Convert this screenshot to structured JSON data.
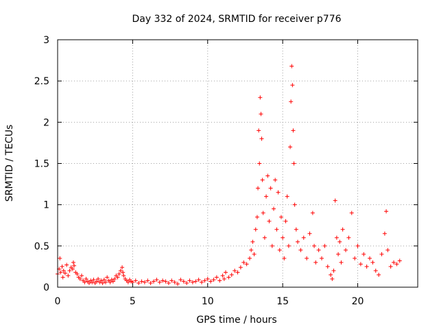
{
  "chart_data": {
    "type": "scatter",
    "title": "Day 332 of 2024, SRMTID for receiver p776",
    "xlabel": "GPS time / hours",
    "ylabel": "SRMTID / TECUs",
    "xlim": [
      0,
      24
    ],
    "ylim": [
      0,
      3
    ],
    "xticks": [
      0,
      5,
      10,
      15,
      20
    ],
    "yticks": [
      0,
      0.5,
      1,
      1.5,
      2,
      2.5,
      3
    ],
    "xtick_labels": [
      "0",
      "5",
      "10",
      "15",
      "20"
    ],
    "ytick_labels": [
      "0",
      "0.5",
      "1",
      "1.5",
      "2",
      "2.5",
      "3"
    ],
    "grid": true,
    "marker": "+",
    "color": "#ff0000",
    "series": [
      {
        "name": "SRMTID",
        "points": [
          [
            0.0,
            0.16
          ],
          [
            0.1,
            0.22
          ],
          [
            0.15,
            0.35
          ],
          [
            0.2,
            0.18
          ],
          [
            0.3,
            0.25
          ],
          [
            0.35,
            0.12
          ],
          [
            0.4,
            0.2
          ],
          [
            0.5,
            0.17
          ],
          [
            0.6,
            0.27
          ],
          [
            0.7,
            0.14
          ],
          [
            0.8,
            0.2
          ],
          [
            0.9,
            0.24
          ],
          [
            1.0,
            0.22
          ],
          [
            1.05,
            0.3
          ],
          [
            1.1,
            0.26
          ],
          [
            1.2,
            0.18
          ],
          [
            1.3,
            0.16
          ],
          [
            1.4,
            0.12
          ],
          [
            1.5,
            0.1
          ],
          [
            1.6,
            0.14
          ],
          [
            1.7,
            0.08
          ],
          [
            1.8,
            0.06
          ],
          [
            1.9,
            0.1
          ],
          [
            2.0,
            0.07
          ],
          [
            2.1,
            0.05
          ],
          [
            2.2,
            0.08
          ],
          [
            2.3,
            0.06
          ],
          [
            2.4,
            0.09
          ],
          [
            2.5,
            0.05
          ],
          [
            2.6,
            0.07
          ],
          [
            2.7,
            0.1
          ],
          [
            2.8,
            0.06
          ],
          [
            2.9,
            0.08
          ],
          [
            3.0,
            0.05
          ],
          [
            3.1,
            0.09
          ],
          [
            3.2,
            0.06
          ],
          [
            3.3,
            0.12
          ],
          [
            3.4,
            0.08
          ],
          [
            3.5,
            0.06
          ],
          [
            3.6,
            0.09
          ],
          [
            3.7,
            0.07
          ],
          [
            3.8,
            0.1
          ],
          [
            3.9,
            0.14
          ],
          [
            4.0,
            0.12
          ],
          [
            4.1,
            0.16
          ],
          [
            4.2,
            0.2
          ],
          [
            4.3,
            0.24
          ],
          [
            4.35,
            0.18
          ],
          [
            4.4,
            0.14
          ],
          [
            4.5,
            0.1
          ],
          [
            4.6,
            0.08
          ],
          [
            4.7,
            0.06
          ],
          [
            4.8,
            0.09
          ],
          [
            4.9,
            0.07
          ],
          [
            5.0,
            0.06
          ],
          [
            5.2,
            0.08
          ],
          [
            5.4,
            0.05
          ],
          [
            5.6,
            0.07
          ],
          [
            5.8,
            0.06
          ],
          [
            6.0,
            0.08
          ],
          [
            6.2,
            0.05
          ],
          [
            6.4,
            0.07
          ],
          [
            6.6,
            0.09
          ],
          [
            6.8,
            0.06
          ],
          [
            7.0,
            0.08
          ],
          [
            7.2,
            0.07
          ],
          [
            7.4,
            0.05
          ],
          [
            7.6,
            0.08
          ],
          [
            7.8,
            0.06
          ],
          [
            8.0,
            0.04
          ],
          [
            8.2,
            0.09
          ],
          [
            8.4,
            0.07
          ],
          [
            8.6,
            0.05
          ],
          [
            8.8,
            0.08
          ],
          [
            9.0,
            0.06
          ],
          [
            9.2,
            0.07
          ],
          [
            9.4,
            0.09
          ],
          [
            9.6,
            0.06
          ],
          [
            9.8,
            0.08
          ],
          [
            10.0,
            0.1
          ],
          [
            10.2,
            0.07
          ],
          [
            10.4,
            0.09
          ],
          [
            10.6,
            0.12
          ],
          [
            10.8,
            0.08
          ],
          [
            11.0,
            0.14
          ],
          [
            11.1,
            0.1
          ],
          [
            11.2,
            0.18
          ],
          [
            11.4,
            0.12
          ],
          [
            11.6,
            0.15
          ],
          [
            11.8,
            0.2
          ],
          [
            12.0,
            0.18
          ],
          [
            12.2,
            0.24
          ],
          [
            12.4,
            0.3
          ],
          [
            12.6,
            0.28
          ],
          [
            12.8,
            0.35
          ],
          [
            12.9,
            0.45
          ],
          [
            13.0,
            0.55
          ],
          [
            13.1,
            0.4
          ],
          [
            13.2,
            0.7
          ],
          [
            13.3,
            0.85
          ],
          [
            13.35,
            1.2
          ],
          [
            13.4,
            1.9
          ],
          [
            13.45,
            1.5
          ],
          [
            13.5,
            2.3
          ],
          [
            13.55,
            2.1
          ],
          [
            13.6,
            1.8
          ],
          [
            13.65,
            1.3
          ],
          [
            13.7,
            0.9
          ],
          [
            13.8,
            0.6
          ],
          [
            13.9,
            1.1
          ],
          [
            14.0,
            1.35
          ],
          [
            14.1,
            0.8
          ],
          [
            14.2,
            1.2
          ],
          [
            14.3,
            0.5
          ],
          [
            14.4,
            0.95
          ],
          [
            14.5,
            1.3
          ],
          [
            14.6,
            0.7
          ],
          [
            14.7,
            1.15
          ],
          [
            14.8,
            0.45
          ],
          [
            14.9,
            0.85
          ],
          [
            15.0,
            0.6
          ],
          [
            15.1,
            0.35
          ],
          [
            15.2,
            0.8
          ],
          [
            15.3,
            1.1
          ],
          [
            15.4,
            0.5
          ],
          [
            15.5,
            1.7
          ],
          [
            15.55,
            2.25
          ],
          [
            15.6,
            2.68
          ],
          [
            15.65,
            2.45
          ],
          [
            15.7,
            1.9
          ],
          [
            15.75,
            1.5
          ],
          [
            15.8,
            1.0
          ],
          [
            15.9,
            0.7
          ],
          [
            16.0,
            0.55
          ],
          [
            16.2,
            0.45
          ],
          [
            16.4,
            0.6
          ],
          [
            16.6,
            0.35
          ],
          [
            16.8,
            0.65
          ],
          [
            17.0,
            0.9
          ],
          [
            17.1,
            0.5
          ],
          [
            17.2,
            0.3
          ],
          [
            17.4,
            0.45
          ],
          [
            17.6,
            0.35
          ],
          [
            17.8,
            0.5
          ],
          [
            18.0,
            0.25
          ],
          [
            18.2,
            0.15
          ],
          [
            18.3,
            0.1
          ],
          [
            18.4,
            0.2
          ],
          [
            18.5,
            1.05
          ],
          [
            18.6,
            0.6
          ],
          [
            18.7,
            0.4
          ],
          [
            18.8,
            0.55
          ],
          [
            18.9,
            0.3
          ],
          [
            19.0,
            0.7
          ],
          [
            19.2,
            0.45
          ],
          [
            19.4,
            0.6
          ],
          [
            19.6,
            0.9
          ],
          [
            19.8,
            0.35
          ],
          [
            20.0,
            0.5
          ],
          [
            20.2,
            0.28
          ],
          [
            20.4,
            0.4
          ],
          [
            20.6,
            0.25
          ],
          [
            20.8,
            0.35
          ],
          [
            21.0,
            0.3
          ],
          [
            21.2,
            0.2
          ],
          [
            21.4,
            0.15
          ],
          [
            21.6,
            0.4
          ],
          [
            21.8,
            0.65
          ],
          [
            21.9,
            0.92
          ],
          [
            22.0,
            0.45
          ],
          [
            22.2,
            0.25
          ],
          [
            22.4,
            0.3
          ],
          [
            22.6,
            0.28
          ],
          [
            22.8,
            0.32
          ]
        ]
      }
    ]
  }
}
